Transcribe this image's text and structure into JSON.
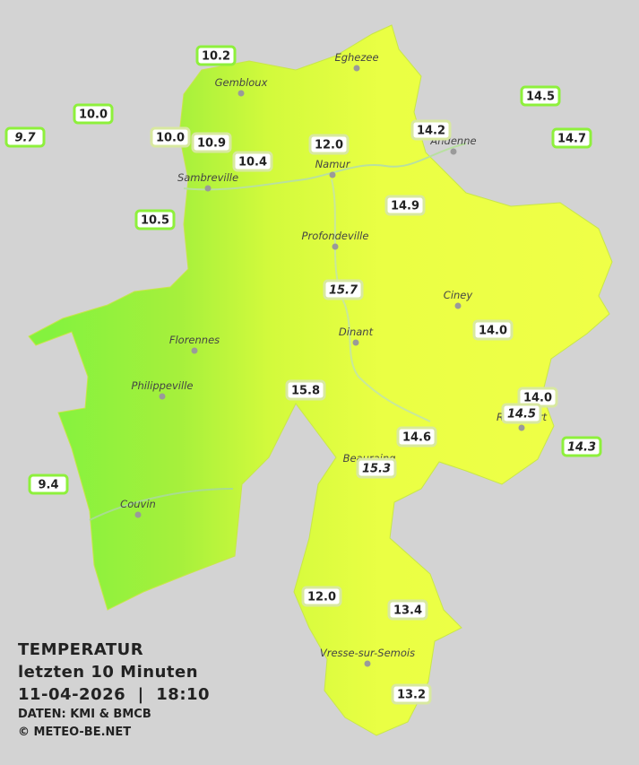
{
  "legend": {
    "title": "TEMPERATUR",
    "period": "letzten 10 Minuten",
    "datetime": "11-04-2026  |  18:10",
    "source": "DATEN: KMI & BMCB",
    "copyright": "© METEO-BE.NET"
  },
  "cities": [
    "Eghezee",
    "Gembloux",
    "Andenne",
    "Namur",
    "Sambreville",
    "Profondeville",
    "Ciney",
    "Dinant",
    "Florennes",
    "Philippeville",
    "Beauraing",
    "Rochefort",
    "Couvin",
    "Vresse-sur-Semois"
  ],
  "stations": [
    "10.2",
    "10.0",
    "9.7",
    "10.0",
    "10.9",
    "10.4",
    "12.0",
    "14.2",
    "14.5",
    "14.7",
    "10.5",
    "14.9",
    "15.7",
    "14.0",
    "15.8",
    "14.0",
    "14.5",
    "14.6",
    "14.3",
    "15.3",
    "9.4",
    "12.0",
    "13.4",
    "13.2"
  ]
}
